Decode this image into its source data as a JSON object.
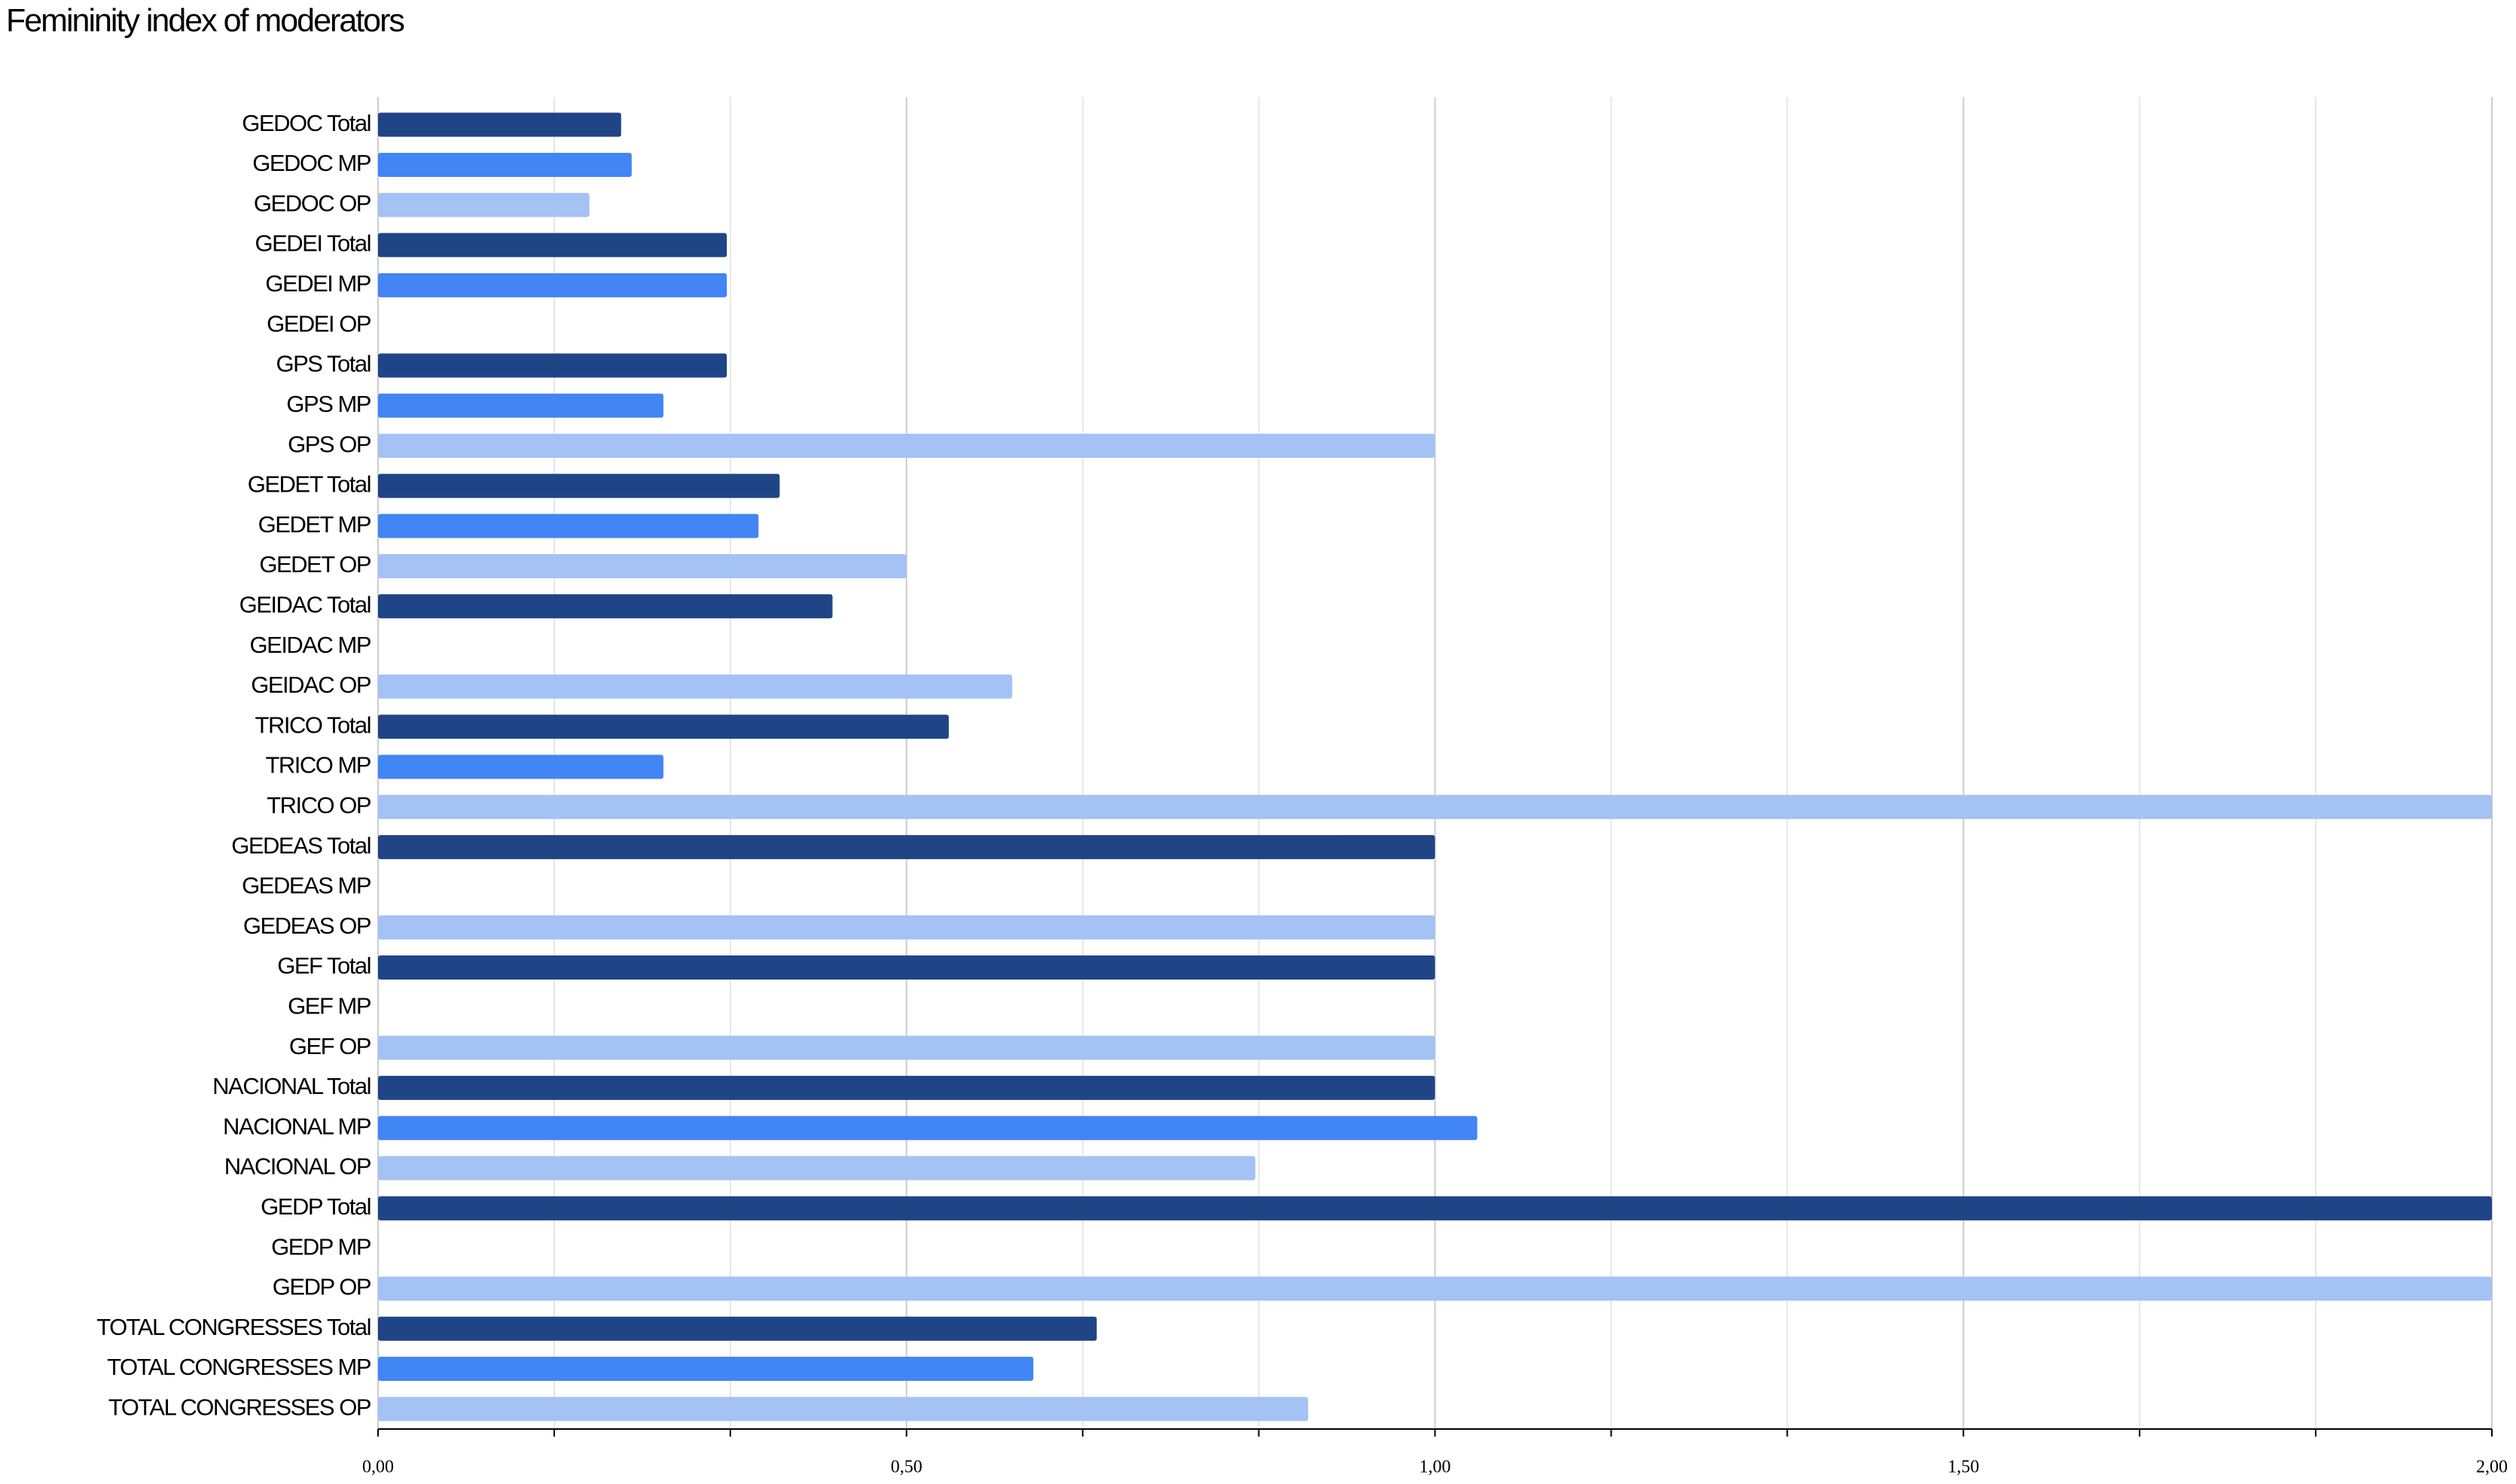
{
  "chart_data": {
    "type": "bar",
    "orientation": "horizontal",
    "title": "Femininity index of moderators",
    "categories": [
      "GEDOC Total",
      "GEDOC MP",
      "GEDOC OP",
      "GEDEI Total",
      "GEDEI MP",
      "GEDEI OP",
      "GPS Total",
      "GPS MP",
      "GPS OP",
      "GEDET Total",
      "GEDET MP",
      "GEDET OP",
      "GEIDAC Total",
      "GEIDAC MP",
      "GEIDAC OP",
      "TRICO Total",
      "TRICO MP",
      "TRICO OP",
      "GEDEAS Total",
      "GEDEAS MP",
      "GEDEAS OP",
      "GEF Total",
      "GEF MP",
      "GEF OP",
      "NACIONAL Total",
      "NACIONAL MP",
      "NACIONAL OP",
      "GEDP Total",
      "GEDP MP",
      "GEDP OP",
      "TOTAL CONGRESSES Total",
      "TOTAL CONGRESSES MP",
      "TOTAL CONGRESSES OP"
    ],
    "values": [
      0.23,
      0.24,
      0.2,
      0.33,
      0.33,
      0,
      0.33,
      0.27,
      1.0,
      0.38,
      0.36,
      0.5,
      0.43,
      0,
      0.6,
      0.54,
      0.27,
      2.0,
      1.0,
      0,
      1.0,
      1.0,
      0,
      1.0,
      1.0,
      1.04,
      0.83,
      2.0,
      0,
      2.0,
      0.68,
      0.62,
      0.88
    ],
    "color_cycle": [
      "#1f4586",
      "#4285f4",
      "#a4c2f4"
    ],
    "xlim": [
      0,
      2
    ],
    "xticks": [
      {
        "value": 0,
        "label": "0,00"
      },
      {
        "value": 0.5,
        "label": "0,50"
      },
      {
        "value": 1.0,
        "label": "1,00"
      },
      {
        "value": 1.5,
        "label": "1,50"
      },
      {
        "value": 2.0,
        "label": "2,00"
      }
    ],
    "xminor_ticks": [
      0.1667,
      0.3333,
      0.6667,
      0.8333,
      1.1667,
      1.3333,
      1.6667,
      1.8333
    ],
    "grid": true
  }
}
